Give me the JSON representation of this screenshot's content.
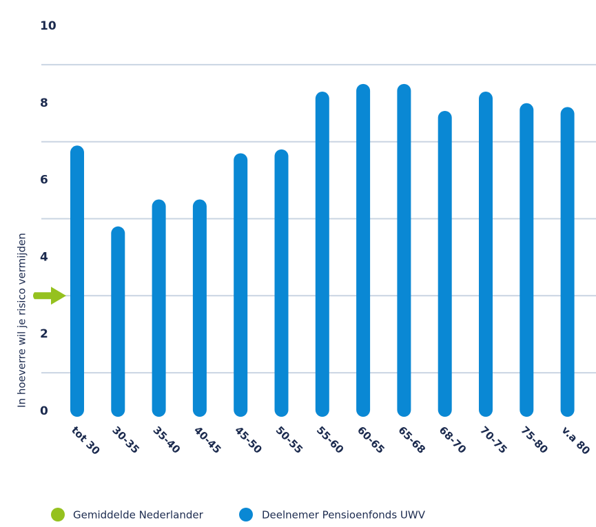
{
  "chart_data": {
    "type": "bar",
    "y_label": "In hoeverre wil je risico vermijden",
    "categories": [
      "tot 30",
      "30-35",
      "35-40",
      "40-45",
      "45-50",
      "50-55",
      "55-60",
      "60-65",
      "65-68",
      "68-70",
      "70-75",
      "75-80",
      "v.a 80"
    ],
    "series": [
      {
        "name": "Deelnemer Pensioenfonds UWV",
        "color": "#0a88d4",
        "values": [
          6.9,
          4.8,
          5.5,
          5.5,
          6.7,
          6.8,
          8.3,
          8.5,
          8.5,
          7.8,
          8.3,
          8.0,
          7.9
        ]
      }
    ],
    "reference": {
      "name": "Gemiddelde Nederlander",
      "color": "#95c11f",
      "value": 3
    },
    "ylim": [
      0,
      10
    ],
    "yticks": [
      0,
      2,
      4,
      6,
      8,
      10
    ],
    "gridlines": [
      1,
      3,
      5,
      7,
      9
    ]
  }
}
